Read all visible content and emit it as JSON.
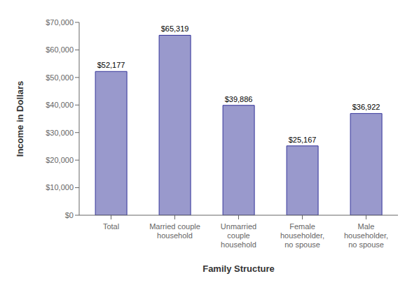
{
  "chart_data": {
    "type": "bar",
    "categories": [
      "Total",
      "Married couple\nhousehold",
      "Unmarried\ncouple\nhousehold",
      "Female\nhouseholder,\nno spouse",
      "Male\nhouseholder,\nno spouse"
    ],
    "values": [
      52177,
      65319,
      39886,
      25167,
      36922
    ],
    "value_labels": [
      "$52,177",
      "$65,319",
      "$39,886",
      "$25,167",
      "$36,922"
    ],
    "data_labels": true,
    "color": "#9999CC",
    "xlabel": "Family Structure",
    "ylabel": "Income in Dollars",
    "ylim": [
      0,
      70000
    ],
    "yticks": [
      {
        "value": 0,
        "label": "$0"
      },
      {
        "value": 10000,
        "label": "$10,000"
      },
      {
        "value": 20000,
        "label": "$20,000"
      },
      {
        "value": 30000,
        "label": "$30,000"
      },
      {
        "value": 40000,
        "label": "$40,000"
      },
      {
        "value": 50000,
        "label": "$50,000"
      },
      {
        "value": 60000,
        "label": "$60,000"
      },
      {
        "value": 70000,
        "label": "$70,000"
      }
    ],
    "grid": false
  }
}
